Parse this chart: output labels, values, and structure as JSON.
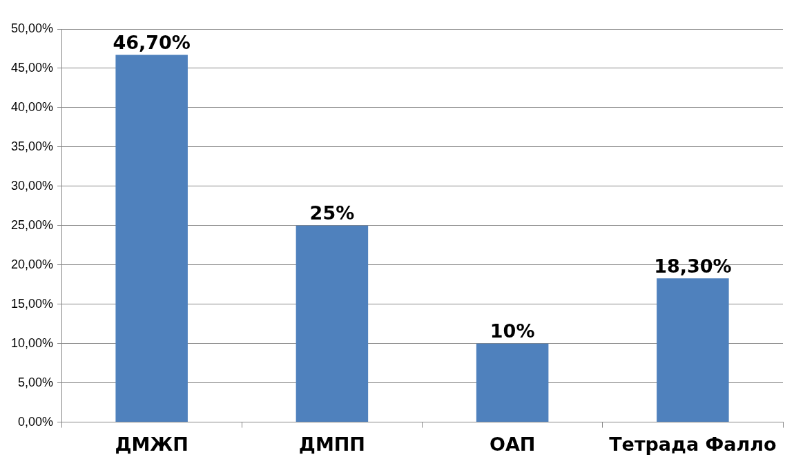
{
  "chart_data": {
    "type": "bar",
    "categories": [
      "ДМЖП",
      "ДМПП",
      "ОАП",
      "Тетрада Фалло"
    ],
    "values": [
      46.7,
      25,
      10,
      18.3
    ],
    "color": "#4f81bd",
    "value_labels": [
      "46,70%",
      "25%",
      "10%",
      "18,30%"
    ],
    "ylim": [
      0,
      50
    ],
    "yticks": [
      {
        "value": 0,
        "label": "0,00%"
      },
      {
        "value": 5,
        "label": "5,00%"
      },
      {
        "value": 10,
        "label": "10,00%"
      },
      {
        "value": 15,
        "label": "15,00%"
      },
      {
        "value": 20,
        "label": "20,00%"
      },
      {
        "value": 25,
        "label": "25,00%"
      },
      {
        "value": 30,
        "label": "30,00%"
      },
      {
        "value": 35,
        "label": "35,00%"
      },
      {
        "value": 40,
        "label": "40,00%"
      },
      {
        "value": 45,
        "label": "45,00%"
      },
      {
        "value": 50,
        "label": "50,00%"
      }
    ],
    "grid": "y",
    "legend": false
  }
}
